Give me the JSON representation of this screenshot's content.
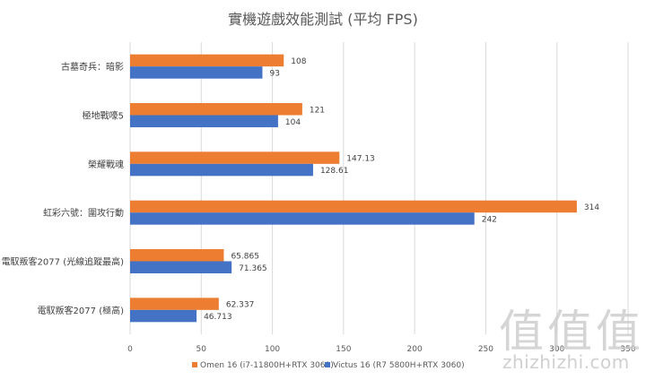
{
  "chart_data": {
    "type": "bar",
    "orientation": "horizontal",
    "title": "實機遊戲效能測試 (平均 FPS)",
    "categories": [
      "古墓奇兵：暗影",
      "極地戰嚎5",
      "榮耀戰魂",
      "虹彩六號：圍攻行動",
      "電馭叛客2077 (光線追蹤最高)",
      "電馭叛客2077 (極高)"
    ],
    "series": [
      {
        "name": "Omen 16 (i7-11800H+RTX 3060)",
        "color": "#ed7d31",
        "values": [
          108,
          121,
          147.13,
          314,
          65.865,
          62.337
        ],
        "labels": [
          "108",
          "121",
          "147.13",
          "314",
          "65.865",
          "62.337"
        ]
      },
      {
        "name": "Victus 16 (R7 5800H+RTX 3060)",
        "color": "#4472c4",
        "values": [
          93,
          104,
          128.61,
          242,
          71.365,
          46.713
        ],
        "labels": [
          "93",
          "104",
          "128.61",
          "242",
          "71.365",
          "46.713"
        ]
      }
    ],
    "xlim": [
      0,
      350
    ],
    "xticks": [
      0,
      50,
      100,
      150,
      200,
      250,
      300,
      350
    ],
    "grid": true,
    "legend_position": "bottom"
  },
  "watermark": {
    "glyphs": [
      "值",
      "值",
      "值"
    ],
    "text": "zhizhizhi.com"
  }
}
